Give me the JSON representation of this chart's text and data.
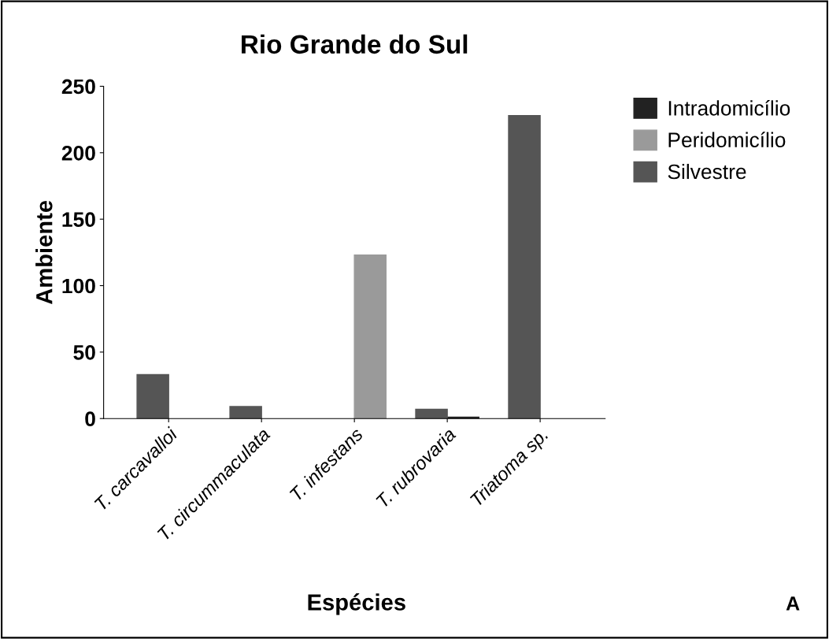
{
  "chart_data": {
    "type": "bar",
    "title": "Rio Grande do Sul",
    "xlabel": "Espécies",
    "ylabel": "Ambiente",
    "categories": [
      "T. carcavalloi",
      "T. circummaculata",
      "T. infestans",
      "T. rubrovaria",
      "Triatoma sp."
    ],
    "series": [
      {
        "name": "Intradomicílio",
        "color": "#222222",
        "values": [
          null,
          null,
          null,
          1,
          null
        ]
      },
      {
        "name": "Peridomicílio",
        "color": "#9a9a9a",
        "values": [
          null,
          null,
          123,
          null,
          null
        ]
      },
      {
        "name": "Silvestre",
        "color": "#555555",
        "values": [
          33,
          9,
          null,
          7,
          228
        ]
      }
    ],
    "ylim": [
      0,
      250
    ],
    "yticks": [
      0,
      50,
      100,
      150,
      200,
      250
    ],
    "grid": false,
    "legend": "top right",
    "annotations": [
      "A"
    ]
  }
}
